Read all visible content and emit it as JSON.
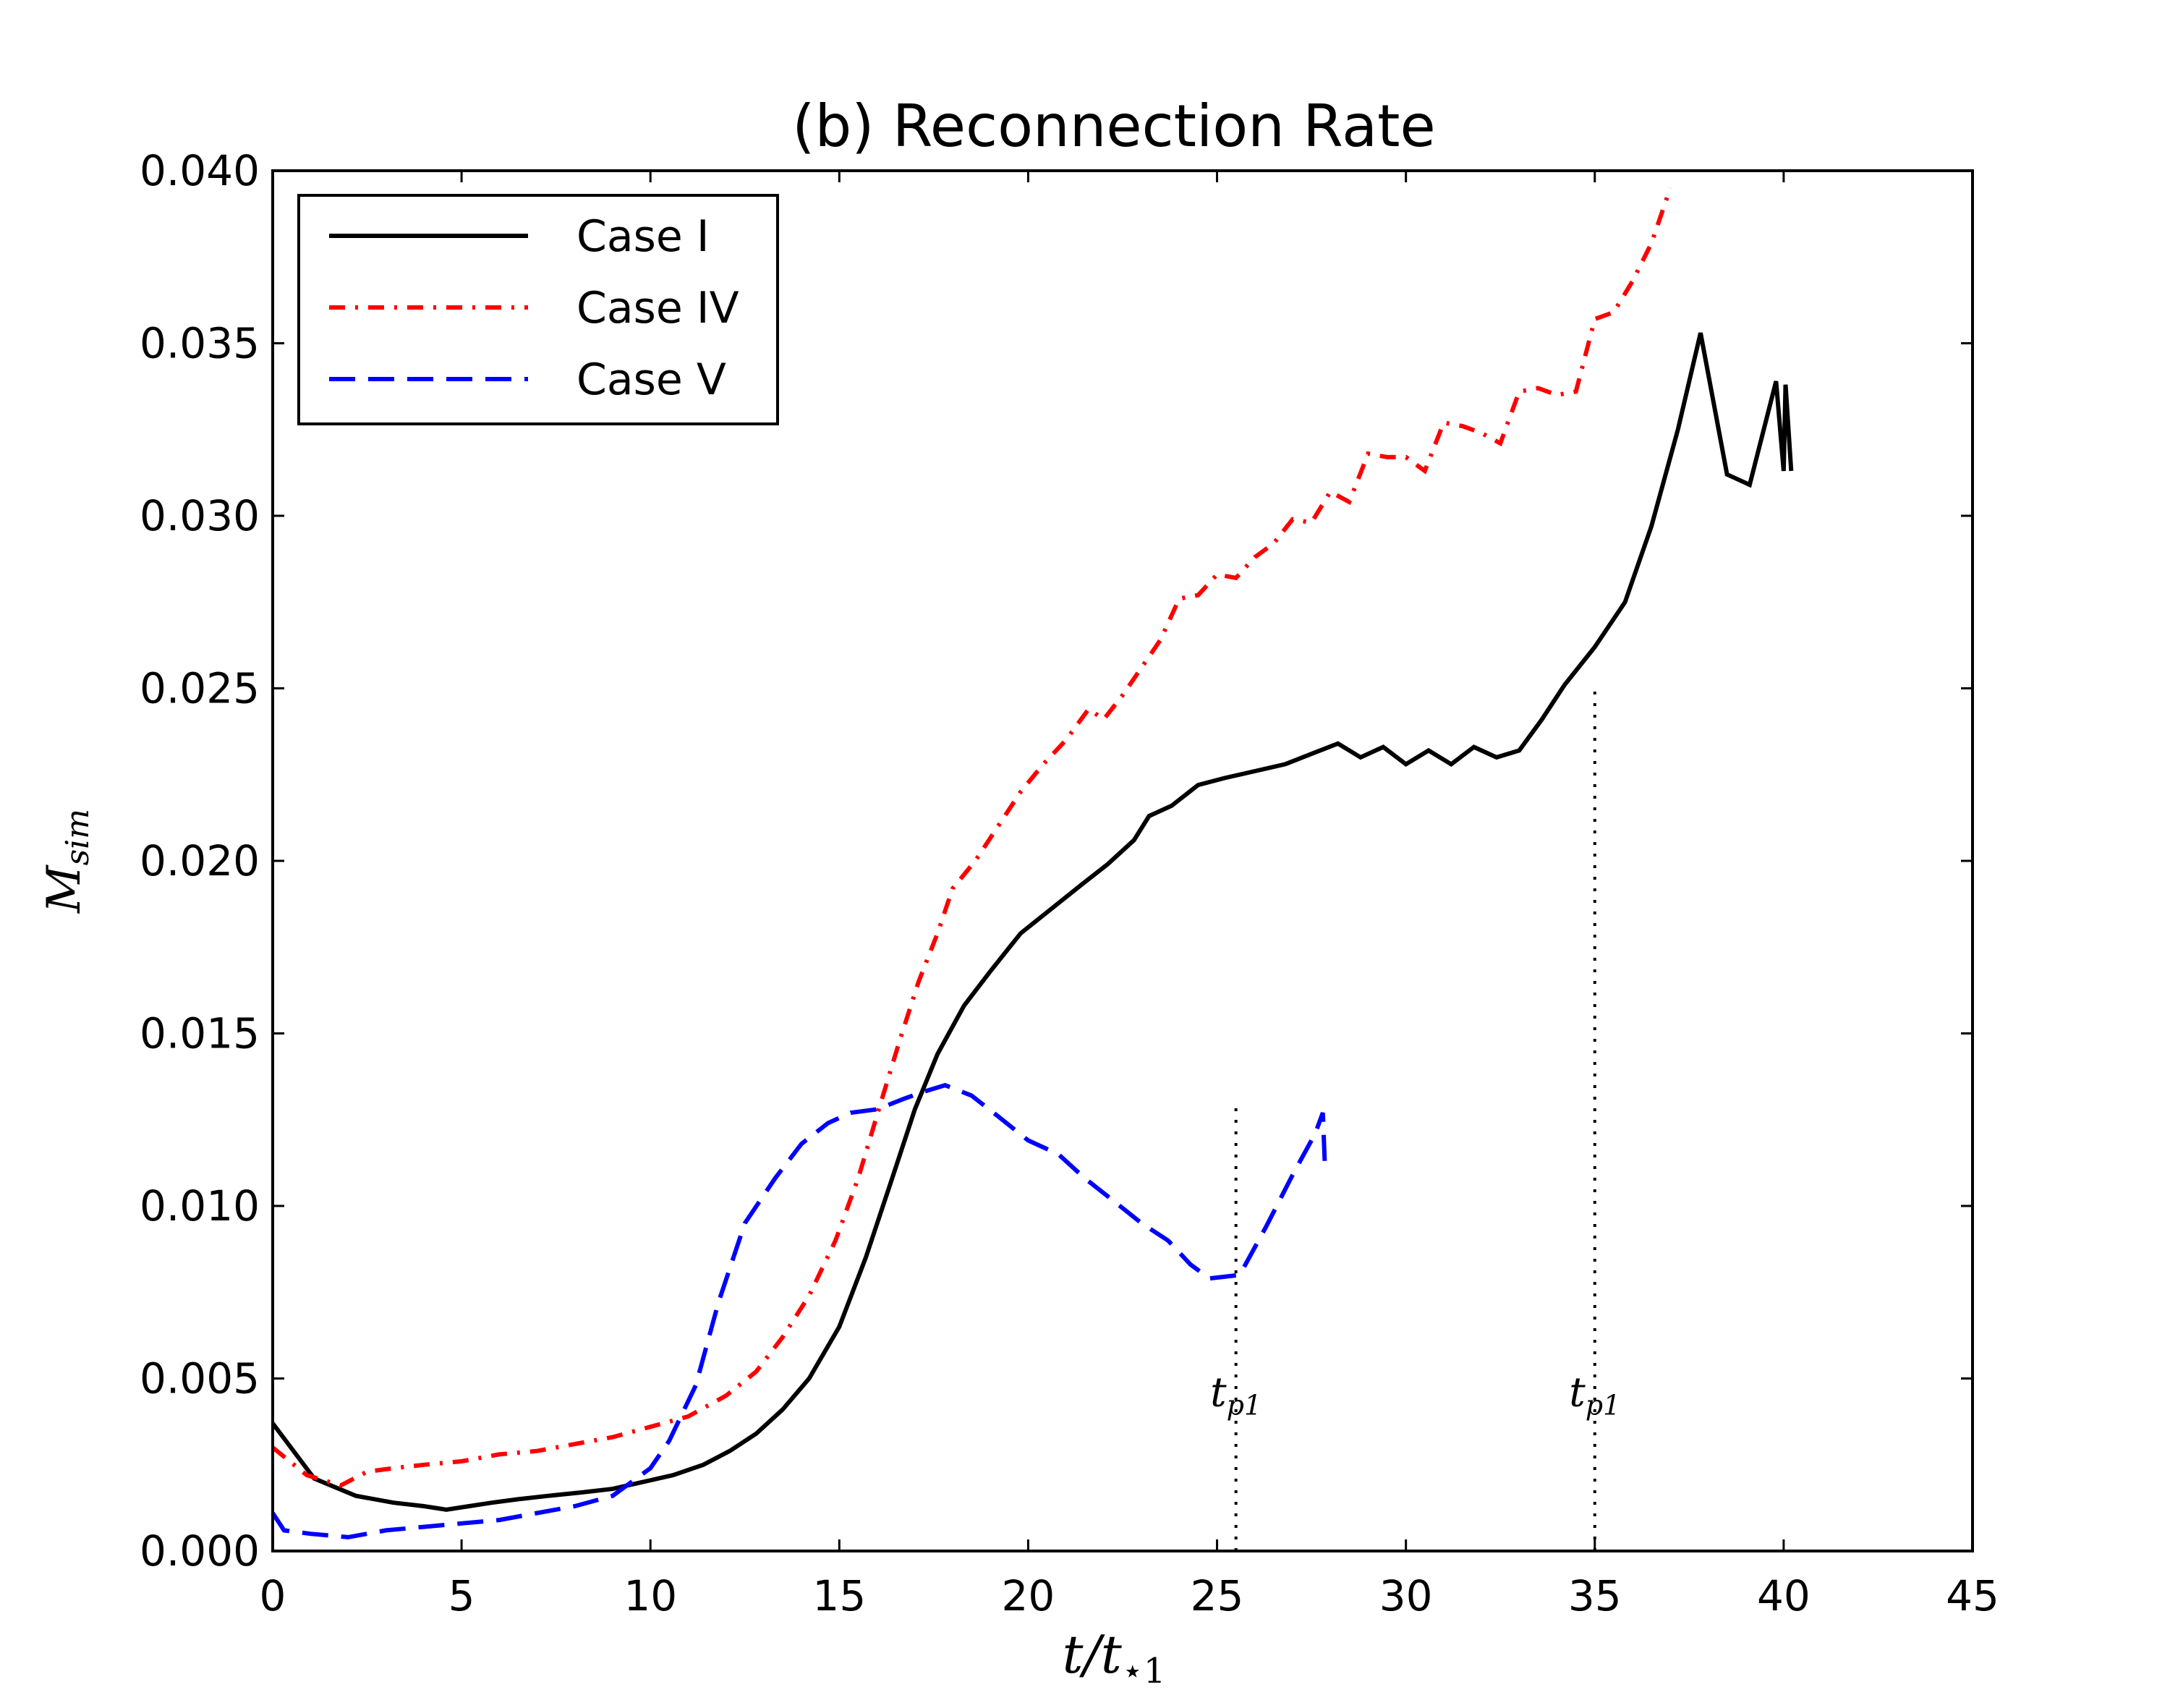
{
  "chart_data": {
    "type": "line",
    "title": "(b) Reconnection Rate",
    "xlabel": {
      "main": "t/t",
      "sub": "⋆1"
    },
    "ylabel": {
      "main": "M",
      "sub": "sim"
    },
    "xlim": [
      0,
      45
    ],
    "ylim": [
      0,
      0.04
    ],
    "xticks": [
      0,
      5,
      10,
      15,
      20,
      25,
      30,
      35,
      40,
      45
    ],
    "xtick_labels": [
      "0",
      "5",
      "10",
      "15",
      "20",
      "25",
      "30",
      "35",
      "40",
      "45"
    ],
    "yticks": [
      0,
      0.005,
      0.01,
      0.015,
      0.02,
      0.025,
      0.03,
      0.035,
      0.04
    ],
    "ytick_labels": [
      "0.000",
      "0.005",
      "0.010",
      "0.015",
      "0.020",
      "0.025",
      "0.030",
      "0.035",
      "0.040"
    ],
    "legend_position": "top-left",
    "series": [
      {
        "name": "Case I",
        "color": "#000000",
        "style": "solid",
        "x": [
          0,
          1.1,
          2.2,
          3.2,
          4.0,
          4.6,
          5.2,
          5.8,
          6.5,
          7.3,
          8.2,
          9.0,
          9.8,
          10.6,
          11.4,
          12.1,
          12.8,
          13.5,
          14.2,
          15.0,
          15.7,
          16.4,
          17.0,
          17.6,
          18.3,
          19.0,
          19.8,
          20.6,
          21.4,
          22.1,
          22.8,
          23.2,
          23.8,
          24.5,
          25.2,
          26.0,
          26.8,
          27.5,
          28.2,
          28.8,
          29.4,
          30.0,
          30.6,
          31.2,
          31.8,
          32.4,
          33.0,
          33.6,
          34.2,
          35.0,
          35.8,
          36.5,
          37.2,
          37.8,
          38.5,
          39.1,
          39.8,
          40.0,
          40.05,
          40.2
        ],
        "y": [
          0.0037,
          0.0021,
          0.0016,
          0.0014,
          0.0013,
          0.0012,
          0.0013,
          0.0014,
          0.0015,
          0.0016,
          0.0017,
          0.0018,
          0.002,
          0.0022,
          0.0025,
          0.0029,
          0.0034,
          0.0041,
          0.005,
          0.0065,
          0.0085,
          0.0108,
          0.0128,
          0.0144,
          0.0158,
          0.0168,
          0.0179,
          0.0186,
          0.0193,
          0.0199,
          0.0206,
          0.0213,
          0.0216,
          0.0222,
          0.0224,
          0.0226,
          0.0228,
          0.0231,
          0.0234,
          0.023,
          0.0233,
          0.0228,
          0.0232,
          0.0228,
          0.0233,
          0.023,
          0.0232,
          0.0241,
          0.0251,
          0.0262,
          0.0275,
          0.0297,
          0.0325,
          0.0353,
          0.0312,
          0.0309,
          0.0339,
          0.0313,
          0.0338,
          0.0313
        ]
      },
      {
        "name": "Case IV",
        "color": "#ff0000",
        "style": "dashdot",
        "x": [
          0,
          0.9,
          1.8,
          2.5,
          3.2,
          4.0,
          5.0,
          6.0,
          7.0,
          8.0,
          9.0,
          10.0,
          11.0,
          12.0,
          12.8,
          13.5,
          14.2,
          14.9,
          15.5,
          16.1,
          16.6,
          17.1,
          17.6,
          18.0,
          18.6,
          19.2,
          19.8,
          20.4,
          21.0,
          21.6,
          22.0,
          22.5,
          23.0,
          23.5,
          24.0,
          24.5,
          25.0,
          25.5,
          26.0,
          26.5,
          27.0,
          27.5,
          28.0,
          28.5,
          29.0,
          29.5,
          30.0,
          30.5,
          31.0,
          31.5,
          32.0,
          32.5,
          33.0,
          33.5,
          34.0,
          34.5,
          35.0,
          35.5,
          36.0,
          36.5,
          37.0
        ],
        "y": [
          0.003,
          0.0022,
          0.0019,
          0.0023,
          0.0024,
          0.0025,
          0.0026,
          0.0028,
          0.0029,
          0.0031,
          0.0033,
          0.0036,
          0.0039,
          0.0045,
          0.0052,
          0.0062,
          0.0074,
          0.009,
          0.0108,
          0.013,
          0.0148,
          0.0165,
          0.0179,
          0.0192,
          0.02,
          0.021,
          0.022,
          0.0228,
          0.0235,
          0.0244,
          0.0241,
          0.0248,
          0.0256,
          0.0264,
          0.0276,
          0.0277,
          0.0283,
          0.0282,
          0.0288,
          0.0292,
          0.0299,
          0.0298,
          0.0307,
          0.0304,
          0.0318,
          0.0317,
          0.0317,
          0.0313,
          0.0327,
          0.0326,
          0.0324,
          0.0321,
          0.0336,
          0.0337,
          0.0335,
          0.0336,
          0.0357,
          0.0359,
          0.0368,
          0.0379,
          0.0395
        ]
      },
      {
        "name": "Case V",
        "color": "#0000ff",
        "style": "dashed",
        "x": [
          0,
          0.3,
          1.0,
          2.0,
          3.0,
          4.0,
          5.0,
          6.0,
          7.0,
          8.0,
          9.0,
          10.0,
          10.5,
          11.2,
          11.8,
          12.5,
          13.3,
          14.0,
          14.7,
          15.3,
          16.0,
          16.7,
          17.2,
          17.8,
          18.5,
          19.2,
          20.0,
          20.8,
          21.5,
          22.2,
          23.0,
          23.7,
          24.3,
          24.8,
          25.6,
          26.3,
          27.0,
          27.6,
          27.8,
          27.85
        ],
        "y": [
          0.0011,
          0.0006,
          0.0005,
          0.0004,
          0.0006,
          0.0007,
          0.0008,
          0.0009,
          0.0011,
          0.0013,
          0.0016,
          0.0024,
          0.0032,
          0.0048,
          0.0072,
          0.0095,
          0.0108,
          0.0118,
          0.0124,
          0.0127,
          0.0128,
          0.0131,
          0.0133,
          0.0135,
          0.0132,
          0.0126,
          0.0119,
          0.0115,
          0.0108,
          0.0102,
          0.0095,
          0.009,
          0.0083,
          0.0079,
          0.008,
          0.0094,
          0.0109,
          0.0121,
          0.0127,
          0.0113
        ]
      }
    ],
    "annotations": [
      {
        "label_main": "t",
        "label_sub": "p1",
        "x": 25.5,
        "y_from": 0.0,
        "y_to": 0.0129,
        "label_y": 0.0042
      },
      {
        "label_main": "t",
        "label_sub": "p1",
        "x": 35.0,
        "y_from": 0.0,
        "y_to": 0.025,
        "label_y": 0.0042
      }
    ]
  }
}
